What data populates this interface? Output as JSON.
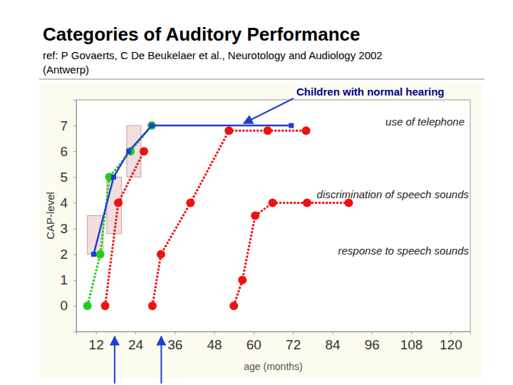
{
  "chart_data": {
    "type": "line",
    "title": "Categories of Auditory Performance",
    "subtitle": [
      "ref: P Govaerts, C De Beukelaer et al., Neurotology and Audiology 2002",
      "(Antwerp)"
    ],
    "x_label": "age (months)",
    "y_label": "CAP-level",
    "xlim": [
      6,
      126
    ],
    "ylim": [
      -1,
      8
    ],
    "xticks": [
      12,
      24,
      36,
      48,
      60,
      72,
      84,
      96,
      108,
      120
    ],
    "yticks": [
      0,
      1,
      2,
      3,
      4,
      5,
      6,
      7
    ],
    "grid": false,
    "series": [
      {
        "color": "#22cc22",
        "marker": "circle",
        "line_style": "dotted",
        "x": [
          9.4,
          13.3,
          16.1,
          22.5,
          29
        ],
        "values": [
          0,
          2,
          5,
          6,
          7
        ]
      },
      {
        "color": "#1f3fd0",
        "marker": "square",
        "line_style": "solid",
        "x": [
          11.3,
          17.4,
          22,
          29,
          71.5
        ],
        "values": [
          2,
          5,
          6,
          7,
          7
        ]
      },
      {
        "color": "#ee1111",
        "marker": "circle",
        "line_style": "dotted",
        "x": [
          14.8,
          18.8,
          26.6
        ],
        "values": [
          0,
          4,
          6
        ]
      },
      {
        "color": "#ee1111",
        "marker": "circle",
        "line_style": "dotted",
        "x": [
          29.2,
          31.8,
          40.8,
          52.5,
          64.3,
          76
        ],
        "values": [
          0,
          2,
          4,
          6.8,
          6.8,
          6.8
        ]
      },
      {
        "color": "#ee1111",
        "marker": "circle",
        "line_style": "dotted",
        "x": [
          54,
          56.6,
          60.5,
          65.8,
          76.3,
          89
        ],
        "values": [
          0,
          1,
          3.5,
          4,
          4,
          4
        ]
      }
    ],
    "ranges": [
      {
        "x": [
          9.4,
          14.2
        ],
        "y": [
          2,
          3.5
        ]
      },
      {
        "x": [
          15.3,
          19.8
        ],
        "y": [
          2.8,
          5
        ]
      },
      {
        "x": [
          21.4,
          25.7
        ],
        "y": [
          5,
          7
        ]
      }
    ],
    "arrows": [
      17.7,
      31.9
    ],
    "annotations": [
      "Children with normal hearing",
      "use of telephone",
      "discrimination of speech sounds",
      "response to speech sounds"
    ]
  }
}
